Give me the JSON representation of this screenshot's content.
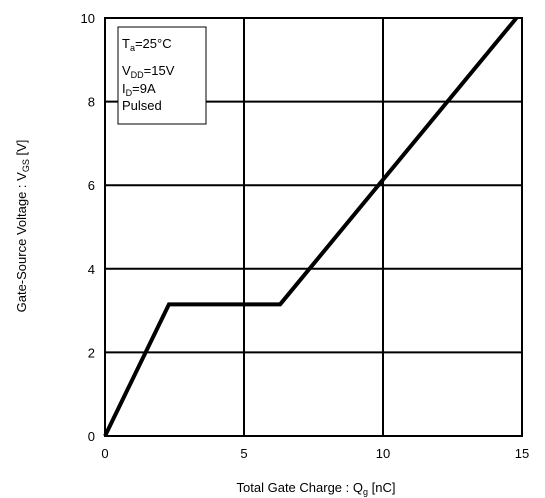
{
  "chart_data": {
    "type": "line",
    "xlabel": "Total Gate Charge : Q",
    "xlabel_sub": "g",
    "xlabel_unit": "[nC]",
    "ylabel": "Gate-Source Voltage : V",
    "ylabel_sub": "GS",
    "ylabel_unit": "[V]",
    "xlim": [
      0,
      15
    ],
    "ylim": [
      0,
      10
    ],
    "x_ticks": [
      0,
      5,
      10,
      15
    ],
    "y_ticks": [
      0,
      2,
      4,
      6,
      8,
      10
    ],
    "grid": true,
    "series": [
      {
        "x": [
          0,
          2.3,
          6.3,
          14.8
        ],
        "y": [
          0,
          3.15,
          3.15,
          10
        ]
      }
    ],
    "annotation": {
      "lines": [
        {
          "main": "T",
          "sub": "a",
          "rest": "=25°C"
        },
        {
          "main": "V",
          "sub": "DD",
          "rest": "=15V"
        },
        {
          "main": "I",
          "sub": "D",
          "rest": "=9A"
        },
        {
          "main": "Pulsed",
          "sub": "",
          "rest": ""
        }
      ]
    }
  }
}
